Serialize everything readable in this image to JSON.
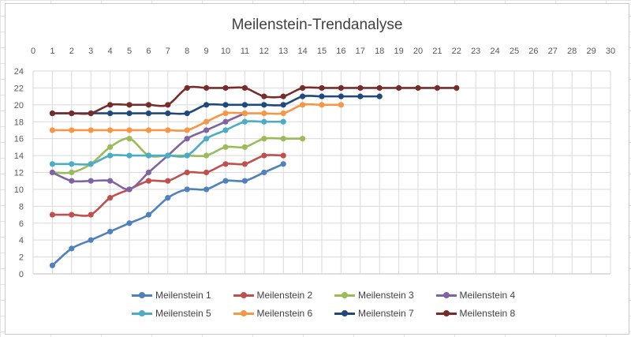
{
  "chart_data": {
    "type": "line",
    "title": "Meilenstein-Trendanalyse",
    "x_ticks": [
      0,
      1,
      2,
      3,
      4,
      5,
      6,
      7,
      8,
      9,
      10,
      11,
      12,
      13,
      14,
      15,
      16,
      17,
      18,
      19,
      20,
      21,
      22,
      23,
      24,
      25,
      26,
      27,
      28,
      29,
      30
    ],
    "xlim": [
      0,
      30
    ],
    "x_axis_position": "top",
    "y_ticks": [
      0,
      2,
      4,
      6,
      8,
      10,
      12,
      14,
      16,
      18,
      20,
      22,
      24
    ],
    "ylim": [
      0,
      24
    ],
    "grid": true,
    "legend_position": "bottom",
    "series": [
      {
        "name": "Meilenstein 1",
        "color": "#4f81bd",
        "x": [
          1,
          2,
          3,
          4,
          5,
          6,
          7,
          8,
          9,
          10,
          11,
          12,
          13
        ],
        "values": [
          1,
          3,
          4,
          5,
          6,
          7,
          9,
          10,
          10,
          11,
          11,
          12,
          13
        ]
      },
      {
        "name": "Meilenstein 2",
        "color": "#c0504d",
        "x": [
          1,
          2,
          3,
          4,
          5,
          6,
          7,
          8,
          9,
          10,
          11,
          12,
          13
        ],
        "values": [
          7,
          7,
          7,
          9,
          10,
          11,
          11,
          12,
          12,
          13,
          13,
          14,
          14
        ]
      },
      {
        "name": "Meilenstein 3",
        "color": "#9bbb59",
        "x": [
          1,
          2,
          3,
          4,
          5,
          6,
          7,
          8,
          9,
          10,
          11,
          12,
          13,
          14
        ],
        "values": [
          12,
          12,
          13,
          15,
          16,
          14,
          14,
          14,
          14,
          15,
          15,
          16,
          16,
          16
        ]
      },
      {
        "name": "Meilenstein 4",
        "color": "#8064a2",
        "x": [
          1,
          2,
          3,
          4,
          5,
          6,
          7,
          8,
          9,
          10,
          11
        ],
        "values": [
          12,
          11,
          11,
          11,
          10,
          12,
          14,
          16,
          17,
          18,
          19
        ]
      },
      {
        "name": "Meilenstein 5",
        "color": "#4bacc6",
        "x": [
          1,
          2,
          3,
          4,
          5,
          6,
          7,
          8,
          9,
          10,
          11,
          12,
          13
        ],
        "values": [
          13,
          13,
          13,
          14,
          14,
          14,
          14,
          14,
          16,
          17,
          18,
          18,
          18
        ]
      },
      {
        "name": "Meilenstein 6",
        "color": "#f79646",
        "x": [
          1,
          2,
          3,
          4,
          5,
          6,
          7,
          8,
          9,
          10,
          11,
          12,
          13,
          14,
          15,
          16
        ],
        "values": [
          17,
          17,
          17,
          17,
          17,
          17,
          17,
          17,
          18,
          19,
          19,
          19,
          19,
          20,
          20,
          20
        ]
      },
      {
        "name": "Meilenstein 7",
        "color": "#1f497d",
        "x": [
          1,
          2,
          3,
          4,
          5,
          6,
          7,
          8,
          9,
          10,
          11,
          12,
          13,
          14,
          15,
          16,
          17,
          18
        ],
        "values": [
          19,
          19,
          19,
          19,
          19,
          19,
          19,
          19,
          20,
          20,
          20,
          20,
          20,
          21,
          21,
          21,
          21,
          21
        ]
      },
      {
        "name": "Meilenstein 8",
        "color": "#772c2a",
        "x": [
          1,
          2,
          3,
          4,
          5,
          6,
          7,
          8,
          9,
          10,
          11,
          12,
          13,
          14,
          15,
          16,
          17,
          18,
          19,
          20,
          21,
          22
        ],
        "values": [
          19,
          19,
          19,
          20,
          20,
          20,
          20,
          22,
          22,
          22,
          22,
          21,
          21,
          22,
          22,
          22,
          22,
          22,
          22,
          22,
          22,
          22
        ]
      }
    ]
  }
}
